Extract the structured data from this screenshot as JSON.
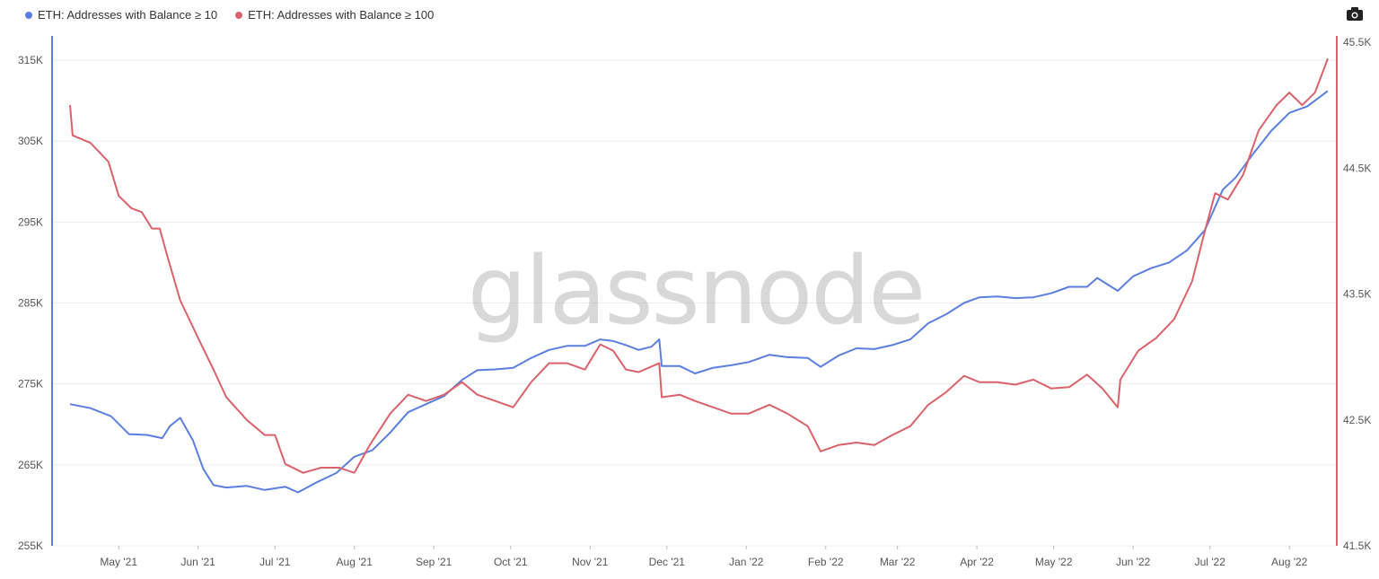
{
  "legend": {
    "series1": "ETH: Addresses with Balance ≥ 10",
    "series2": "ETH: Addresses with Balance ≥ 100"
  },
  "watermark": "glassnode",
  "toolbar": {
    "camera_icon": "camera-icon"
  },
  "colors": {
    "series1": "#5b7fe0",
    "series2": "#d9626b",
    "grid": "#ececec"
  },
  "chart_data": {
    "type": "line",
    "x_axis": {
      "ticks": [
        "May '21",
        "Jun '21",
        "Jul '21",
        "Aug '21",
        "Sep '21",
        "Oct '21",
        "Nov '21",
        "Dec '21",
        "Jan '22",
        "Feb '22",
        "Mar '22",
        "Apr '22",
        "May '22",
        "Jun '22",
        "Jul '22",
        "Aug '22"
      ],
      "range": [
        "2021-04-12",
        "2022-08-16"
      ]
    },
    "y_left": {
      "ticks": [
        "255K",
        "265K",
        "275K",
        "285K",
        "295K",
        "305K",
        "315K"
      ],
      "range": [
        255000,
        318000
      ]
    },
    "y_right": {
      "ticks": [
        "41.5K",
        "42.5K",
        "43.5K",
        "44.5K",
        "45.5K"
      ],
      "range": [
        41500,
        45550
      ]
    },
    "grid": true,
    "series": [
      {
        "name": "ETH: Addresses with Balance ≥ 10",
        "axis": "left",
        "color": "#5b7fe0",
        "points": [
          [
            "2021-04-12",
            272500
          ],
          [
            "2021-04-20",
            272000
          ],
          [
            "2021-04-28",
            271000
          ],
          [
            "2021-05-05",
            268800
          ],
          [
            "2021-05-12",
            268700
          ],
          [
            "2021-05-18",
            268300
          ],
          [
            "2021-05-21",
            269800
          ],
          [
            "2021-05-25",
            270800
          ],
          [
            "2021-05-30",
            268000
          ],
          [
            "2021-06-03",
            264500
          ],
          [
            "2021-06-07",
            262500
          ],
          [
            "2021-06-12",
            262200
          ],
          [
            "2021-06-20",
            262400
          ],
          [
            "2021-06-27",
            261900
          ],
          [
            "2021-07-05",
            262300
          ],
          [
            "2021-07-10",
            261600
          ],
          [
            "2021-07-17",
            262800
          ],
          [
            "2021-07-25",
            264000
          ],
          [
            "2021-08-01",
            266000
          ],
          [
            "2021-08-08",
            266800
          ],
          [
            "2021-08-15",
            269000
          ],
          [
            "2021-08-22",
            271500
          ],
          [
            "2021-08-29",
            272500
          ],
          [
            "2021-09-05",
            273500
          ],
          [
            "2021-09-12",
            275500
          ],
          [
            "2021-09-18",
            276700
          ],
          [
            "2021-09-25",
            276800
          ],
          [
            "2021-10-02",
            277000
          ],
          [
            "2021-10-09",
            278200
          ],
          [
            "2021-10-16",
            279200
          ],
          [
            "2021-10-23",
            279700
          ],
          [
            "2021-10-30",
            279700
          ],
          [
            "2021-11-05",
            280500
          ],
          [
            "2021-11-10",
            280300
          ],
          [
            "2021-11-15",
            279800
          ],
          [
            "2021-11-20",
            279200
          ],
          [
            "2021-11-25",
            279600
          ],
          [
            "2021-11-28",
            280500
          ],
          [
            "2021-11-29",
            277200
          ],
          [
            "2021-12-06",
            277200
          ],
          [
            "2021-12-12",
            276300
          ],
          [
            "2021-12-19",
            277000
          ],
          [
            "2021-12-26",
            277300
          ],
          [
            "2022-01-02",
            277700
          ],
          [
            "2022-01-10",
            278600
          ],
          [
            "2022-01-17",
            278300
          ],
          [
            "2022-01-25",
            278200
          ],
          [
            "2022-01-30",
            277100
          ],
          [
            "2022-02-06",
            278500
          ],
          [
            "2022-02-13",
            279400
          ],
          [
            "2022-02-20",
            279300
          ],
          [
            "2022-02-27",
            279800
          ],
          [
            "2022-03-06",
            280500
          ],
          [
            "2022-03-13",
            282500
          ],
          [
            "2022-03-20",
            283600
          ],
          [
            "2022-03-27",
            285000
          ],
          [
            "2022-04-02",
            285700
          ],
          [
            "2022-04-09",
            285800
          ],
          [
            "2022-04-16",
            285600
          ],
          [
            "2022-04-23",
            285700
          ],
          [
            "2022-04-30",
            286200
          ],
          [
            "2022-05-07",
            287000
          ],
          [
            "2022-05-14",
            287000
          ],
          [
            "2022-05-18",
            288100
          ],
          [
            "2022-05-26",
            286500
          ],
          [
            "2022-06-01",
            288300
          ],
          [
            "2022-06-08",
            289300
          ],
          [
            "2022-06-15",
            290000
          ],
          [
            "2022-06-22",
            291500
          ],
          [
            "2022-06-29",
            294000
          ],
          [
            "2022-07-06",
            299000
          ],
          [
            "2022-07-11",
            300500
          ],
          [
            "2022-07-18",
            303500
          ],
          [
            "2022-07-25",
            306300
          ],
          [
            "2022-08-01",
            308500
          ],
          [
            "2022-08-08",
            309300
          ],
          [
            "2022-08-16",
            311200
          ]
        ]
      },
      {
        "name": "ETH: Addresses with Balance ≥ 100",
        "axis": "right",
        "color": "#d9626b",
        "points": [
          [
            "2021-04-12",
            45000
          ],
          [
            "2021-04-13",
            44760
          ],
          [
            "2021-04-20",
            44700
          ],
          [
            "2021-04-27",
            44550
          ],
          [
            "2021-05-01",
            44280
          ],
          [
            "2021-05-06",
            44180
          ],
          [
            "2021-05-10",
            44150
          ],
          [
            "2021-05-14",
            44020
          ],
          [
            "2021-05-17",
            44020
          ],
          [
            "2021-05-20",
            43800
          ],
          [
            "2021-05-25",
            43450
          ],
          [
            "2021-06-01",
            43150
          ],
          [
            "2021-06-07",
            42900
          ],
          [
            "2021-06-12",
            42680
          ],
          [
            "2021-06-20",
            42500
          ],
          [
            "2021-06-27",
            42380
          ],
          [
            "2021-07-01",
            42380
          ],
          [
            "2021-07-05",
            42150
          ],
          [
            "2021-07-12",
            42080
          ],
          [
            "2021-07-19",
            42120
          ],
          [
            "2021-07-26",
            42120
          ],
          [
            "2021-08-01",
            42080
          ],
          [
            "2021-08-07",
            42300
          ],
          [
            "2021-08-15",
            42550
          ],
          [
            "2021-08-22",
            42700
          ],
          [
            "2021-08-29",
            42650
          ],
          [
            "2021-09-05",
            42700
          ],
          [
            "2021-09-12",
            42800
          ],
          [
            "2021-09-18",
            42700
          ],
          [
            "2021-09-25",
            42650
          ],
          [
            "2021-10-02",
            42600
          ],
          [
            "2021-10-09",
            42800
          ],
          [
            "2021-10-16",
            42950
          ],
          [
            "2021-10-23",
            42950
          ],
          [
            "2021-10-30",
            42900
          ],
          [
            "2021-11-05",
            43100
          ],
          [
            "2021-11-10",
            43050
          ],
          [
            "2021-11-15",
            42900
          ],
          [
            "2021-11-20",
            42880
          ],
          [
            "2021-11-28",
            42950
          ],
          [
            "2021-11-29",
            42680
          ],
          [
            "2021-12-06",
            42700
          ],
          [
            "2021-12-12",
            42650
          ],
          [
            "2021-12-19",
            42600
          ],
          [
            "2021-12-26",
            42550
          ],
          [
            "2022-01-02",
            42550
          ],
          [
            "2022-01-10",
            42620
          ],
          [
            "2022-01-17",
            42550
          ],
          [
            "2022-01-25",
            42450
          ],
          [
            "2022-01-30",
            42250
          ],
          [
            "2022-02-06",
            42300
          ],
          [
            "2022-02-13",
            42320
          ],
          [
            "2022-02-20",
            42300
          ],
          [
            "2022-02-27",
            42380
          ],
          [
            "2022-03-06",
            42450
          ],
          [
            "2022-03-13",
            42620
          ],
          [
            "2022-03-20",
            42720
          ],
          [
            "2022-03-27",
            42850
          ],
          [
            "2022-04-02",
            42800
          ],
          [
            "2022-04-09",
            42800
          ],
          [
            "2022-04-16",
            42780
          ],
          [
            "2022-04-23",
            42820
          ],
          [
            "2022-04-30",
            42750
          ],
          [
            "2022-05-07",
            42760
          ],
          [
            "2022-05-14",
            42860
          ],
          [
            "2022-05-20",
            42750
          ],
          [
            "2022-05-26",
            42600
          ],
          [
            "2022-05-27",
            42820
          ],
          [
            "2022-06-03",
            43050
          ],
          [
            "2022-06-10",
            43150
          ],
          [
            "2022-06-17",
            43300
          ],
          [
            "2022-06-24",
            43600
          ],
          [
            "2022-06-29",
            44000
          ],
          [
            "2022-07-03",
            44300
          ],
          [
            "2022-07-08",
            44250
          ],
          [
            "2022-07-14",
            44450
          ],
          [
            "2022-07-20",
            44800
          ],
          [
            "2022-07-27",
            45000
          ],
          [
            "2022-08-01",
            45100
          ],
          [
            "2022-08-06",
            45000
          ],
          [
            "2022-08-11",
            45100
          ],
          [
            "2022-08-16",
            45370
          ]
        ]
      }
    ]
  }
}
